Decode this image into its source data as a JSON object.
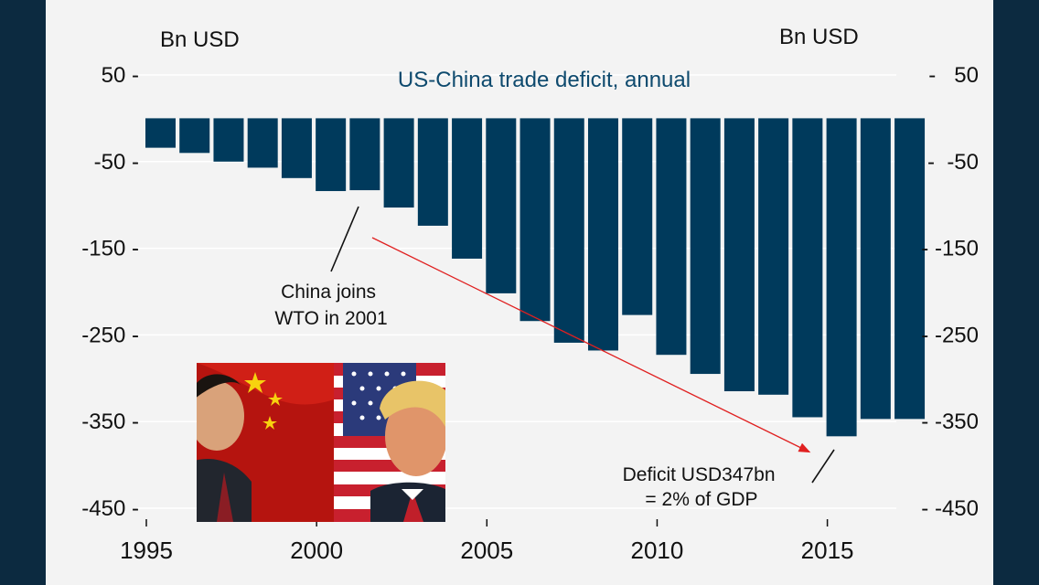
{
  "chart_data": {
    "type": "bar",
    "title": "US-China trade deficit, annual",
    "left_axis_label": "Bn USD",
    "right_axis_label": "Bn USD",
    "categories": [
      1995,
      1996,
      1997,
      1998,
      1999,
      2000,
      2001,
      2002,
      2003,
      2004,
      2005,
      2006,
      2007,
      2008,
      2009,
      2010,
      2011,
      2012,
      2013,
      2014,
      2015,
      2016,
      2017
    ],
    "values": [
      -34,
      -40,
      -50,
      -57,
      -69,
      -84,
      -83,
      -103,
      -124,
      -162,
      -202,
      -234,
      -259,
      -268,
      -227,
      -273,
      -295,
      -315,
      -319,
      -345,
      -367,
      -347,
      -347
    ],
    "ylim": [
      -475,
      55
    ],
    "left_ticks": [
      {
        "value": 50,
        "label": "50 -"
      },
      {
        "value": -50,
        "label": "-50 -"
      },
      {
        "value": -150,
        "label": "-150 -"
      },
      {
        "value": -250,
        "label": "-250 -"
      },
      {
        "value": -350,
        "label": "-350 -"
      },
      {
        "value": -450,
        "label": "-450 -"
      }
    ],
    "right_ticks": [
      {
        "value": 50,
        "label": "-   50"
      },
      {
        "value": -50,
        "label": "-  -50"
      },
      {
        "value": -150,
        "label": "- -150"
      },
      {
        "value": -250,
        "label": "- -250"
      },
      {
        "value": -350,
        "label": "- -350"
      },
      {
        "value": -450,
        "label": "- -450"
      }
    ],
    "x_ticks": [
      {
        "year": 1995,
        "label": "1995"
      },
      {
        "year": 2000,
        "label": "2000"
      },
      {
        "year": 2005,
        "label": "2005"
      },
      {
        "year": 2010,
        "label": "2010"
      },
      {
        "year": 2015,
        "label": "2015"
      }
    ],
    "annotations": [
      {
        "lines": [
          "China joins",
          "WTO in 2001"
        ]
      },
      {
        "lines": [
          "Deficit USD347bn",
          "= 2% of GDP"
        ]
      }
    ],
    "bar_color": "#003a5c",
    "title_color": "#0e4a6e",
    "arrow_color": "#e02020"
  },
  "photo": {
    "description_icon": "us-china-leaders-photo-icon"
  }
}
